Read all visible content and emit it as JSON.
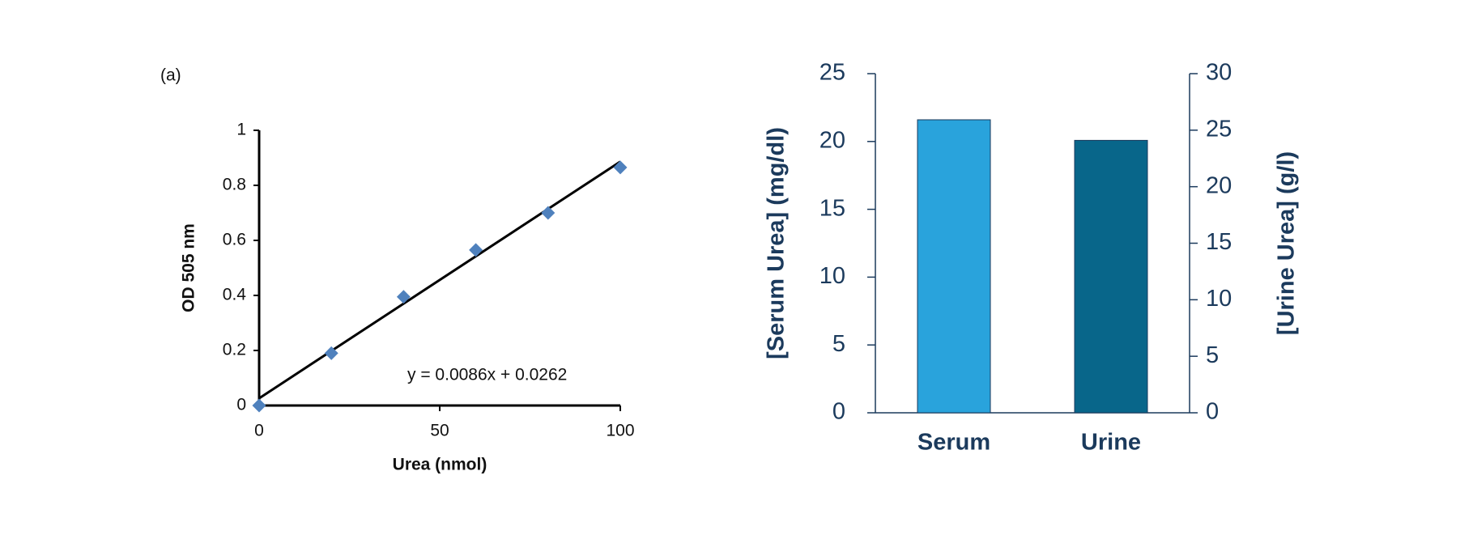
{
  "chart_data": [
    {
      "type": "scatter",
      "panel_label": "(a)",
      "x_label": "Urea (nmol)",
      "y_label": "OD 505 nm",
      "x": [
        0,
        20,
        40,
        60,
        80,
        100
      ],
      "values": [
        0,
        0.19,
        0.395,
        0.565,
        0.7,
        0.865
      ],
      "color": "#4f81bd",
      "xlim": [
        0,
        100
      ],
      "xticks": [
        0,
        50,
        100
      ],
      "ylim": [
        0,
        1
      ],
      "yticks": [
        0,
        0.2,
        0.4,
        0.6,
        0.8,
        1
      ],
      "trendline": {
        "slope": 0.0086,
        "intercept": 0.0262,
        "label": "y = 0.0086x + 0.0262",
        "color": "#000000"
      }
    },
    {
      "type": "bar",
      "y_label": "[Serum Urea] (mg/dl)",
      "y2_label": "[Urine Urea] (g/l)",
      "categories": [
        "Serum",
        "Urine"
      ],
      "series": [
        {
          "color": "#29a3dc",
          "values": [
            21.6,
            null
          ]
        },
        {
          "color": "#08668a",
          "axis": "y2",
          "values": [
            null,
            24.1
          ]
        }
      ],
      "ylim": [
        0,
        25
      ],
      "yticks": [
        0,
        5,
        10,
        15,
        20,
        25
      ],
      "y2lim": [
        0,
        30
      ],
      "y2ticks": [
        0,
        5,
        10,
        15,
        20,
        25,
        30
      ]
    }
  ]
}
